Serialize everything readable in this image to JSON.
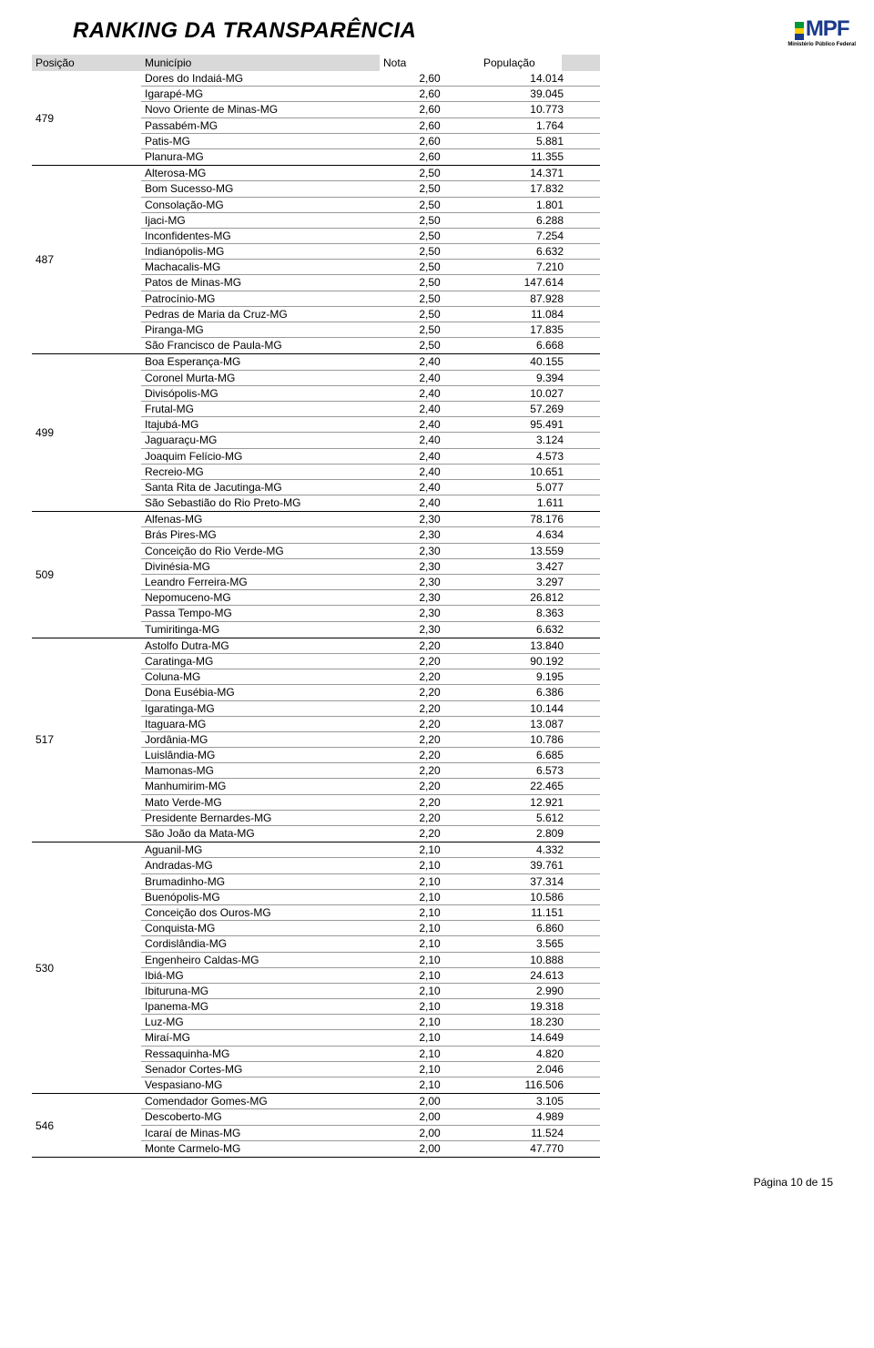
{
  "title": "RANKING DA TRANSPARÊNCIA",
  "logo": {
    "text": "MPF",
    "sub": "Ministério Público Federal"
  },
  "columns": {
    "posicao": "Posição",
    "municipio": "Município",
    "nota": "Nota",
    "populacao": "População"
  },
  "footer": "Página 10 de 15",
  "groups": [
    {
      "posicao": "479",
      "rows": [
        {
          "municipio": "Dores do Indaiá-MG",
          "nota": "2,60",
          "pop": "14.014"
        },
        {
          "municipio": "Igarapé-MG",
          "nota": "2,60",
          "pop": "39.045"
        },
        {
          "municipio": "Novo Oriente de Minas-MG",
          "nota": "2,60",
          "pop": "10.773"
        },
        {
          "municipio": "Passabém-MG",
          "nota": "2,60",
          "pop": "1.764"
        },
        {
          "municipio": "Patis-MG",
          "nota": "2,60",
          "pop": "5.881"
        },
        {
          "municipio": "Planura-MG",
          "nota": "2,60",
          "pop": "11.355"
        }
      ]
    },
    {
      "posicao": "487",
      "rows": [
        {
          "municipio": "Alterosa-MG",
          "nota": "2,50",
          "pop": "14.371"
        },
        {
          "municipio": "Bom Sucesso-MG",
          "nota": "2,50",
          "pop": "17.832"
        },
        {
          "municipio": "Consolação-MG",
          "nota": "2,50",
          "pop": "1.801"
        },
        {
          "municipio": "Ijaci-MG",
          "nota": "2,50",
          "pop": "6.288"
        },
        {
          "municipio": "Inconfidentes-MG",
          "nota": "2,50",
          "pop": "7.254"
        },
        {
          "municipio": "Indianópolis-MG",
          "nota": "2,50",
          "pop": "6.632"
        },
        {
          "municipio": "Machacalis-MG",
          "nota": "2,50",
          "pop": "7.210"
        },
        {
          "municipio": "Patos de Minas-MG",
          "nota": "2,50",
          "pop": "147.614"
        },
        {
          "municipio": "Patrocínio-MG",
          "nota": "2,50",
          "pop": "87.928"
        },
        {
          "municipio": "Pedras de Maria da Cruz-MG",
          "nota": "2,50",
          "pop": "11.084"
        },
        {
          "municipio": "Piranga-MG",
          "nota": "2,50",
          "pop": "17.835"
        },
        {
          "municipio": "São Francisco de Paula-MG",
          "nota": "2,50",
          "pop": "6.668"
        }
      ]
    },
    {
      "posicao": "499",
      "rows": [
        {
          "municipio": "Boa Esperança-MG",
          "nota": "2,40",
          "pop": "40.155"
        },
        {
          "municipio": "Coronel Murta-MG",
          "nota": "2,40",
          "pop": "9.394"
        },
        {
          "municipio": "Divisópolis-MG",
          "nota": "2,40",
          "pop": "10.027"
        },
        {
          "municipio": "Frutal-MG",
          "nota": "2,40",
          "pop": "57.269"
        },
        {
          "municipio": "Itajubá-MG",
          "nota": "2,40",
          "pop": "95.491"
        },
        {
          "municipio": "Jaguaraçu-MG",
          "nota": "2,40",
          "pop": "3.124"
        },
        {
          "municipio": "Joaquim Felício-MG",
          "nota": "2,40",
          "pop": "4.573"
        },
        {
          "municipio": "Recreio-MG",
          "nota": "2,40",
          "pop": "10.651"
        },
        {
          "municipio": "Santa Rita de Jacutinga-MG",
          "nota": "2,40",
          "pop": "5.077"
        },
        {
          "municipio": "São Sebastião do Rio Preto-MG",
          "nota": "2,40",
          "pop": "1.611"
        }
      ]
    },
    {
      "posicao": "509",
      "rows": [
        {
          "municipio": "Alfenas-MG",
          "nota": "2,30",
          "pop": "78.176"
        },
        {
          "municipio": "Brás Pires-MG",
          "nota": "2,30",
          "pop": "4.634"
        },
        {
          "municipio": "Conceição do Rio Verde-MG",
          "nota": "2,30",
          "pop": "13.559"
        },
        {
          "municipio": "Divinésia-MG",
          "nota": "2,30",
          "pop": "3.427"
        },
        {
          "municipio": "Leandro Ferreira-MG",
          "nota": "2,30",
          "pop": "3.297"
        },
        {
          "municipio": "Nepomuceno-MG",
          "nota": "2,30",
          "pop": "26.812"
        },
        {
          "municipio": "Passa Tempo-MG",
          "nota": "2,30",
          "pop": "8.363"
        },
        {
          "municipio": "Tumiritinga-MG",
          "nota": "2,30",
          "pop": "6.632"
        }
      ]
    },
    {
      "posicao": "517",
      "rows": [
        {
          "municipio": "Astolfo Dutra-MG",
          "nota": "2,20",
          "pop": "13.840"
        },
        {
          "municipio": "Caratinga-MG",
          "nota": "2,20",
          "pop": "90.192"
        },
        {
          "municipio": "Coluna-MG",
          "nota": "2,20",
          "pop": "9.195"
        },
        {
          "municipio": "Dona Eusébia-MG",
          "nota": "2,20",
          "pop": "6.386"
        },
        {
          "municipio": "Igaratinga-MG",
          "nota": "2,20",
          "pop": "10.144"
        },
        {
          "municipio": "Itaguara-MG",
          "nota": "2,20",
          "pop": "13.087"
        },
        {
          "municipio": "Jordânia-MG",
          "nota": "2,20",
          "pop": "10.786"
        },
        {
          "municipio": "Luislândia-MG",
          "nota": "2,20",
          "pop": "6.685"
        },
        {
          "municipio": "Mamonas-MG",
          "nota": "2,20",
          "pop": "6.573"
        },
        {
          "municipio": "Manhumirim-MG",
          "nota": "2,20",
          "pop": "22.465"
        },
        {
          "municipio": "Mato Verde-MG",
          "nota": "2,20",
          "pop": "12.921"
        },
        {
          "municipio": "Presidente Bernardes-MG",
          "nota": "2,20",
          "pop": "5.612"
        },
        {
          "municipio": "São João da Mata-MG",
          "nota": "2,20",
          "pop": "2.809"
        }
      ]
    },
    {
      "posicao": "530",
      "rows": [
        {
          "municipio": "Aguanil-MG",
          "nota": "2,10",
          "pop": "4.332"
        },
        {
          "municipio": "Andradas-MG",
          "nota": "2,10",
          "pop": "39.761"
        },
        {
          "municipio": "Brumadinho-MG",
          "nota": "2,10",
          "pop": "37.314"
        },
        {
          "municipio": "Buenópolis-MG",
          "nota": "2,10",
          "pop": "10.586"
        },
        {
          "municipio": "Conceição dos Ouros-MG",
          "nota": "2,10",
          "pop": "11.151"
        },
        {
          "municipio": "Conquista-MG",
          "nota": "2,10",
          "pop": "6.860"
        },
        {
          "municipio": "Cordislândia-MG",
          "nota": "2,10",
          "pop": "3.565"
        },
        {
          "municipio": "Engenheiro Caldas-MG",
          "nota": "2,10",
          "pop": "10.888"
        },
        {
          "municipio": "Ibiá-MG",
          "nota": "2,10",
          "pop": "24.613"
        },
        {
          "municipio": "Ibituruna-MG",
          "nota": "2,10",
          "pop": "2.990"
        },
        {
          "municipio": "Ipanema-MG",
          "nota": "2,10",
          "pop": "19.318"
        },
        {
          "municipio": "Luz-MG",
          "nota": "2,10",
          "pop": "18.230"
        },
        {
          "municipio": "Miraí-MG",
          "nota": "2,10",
          "pop": "14.649"
        },
        {
          "municipio": "Ressaquinha-MG",
          "nota": "2,10",
          "pop": "4.820"
        },
        {
          "municipio": "Senador Cortes-MG",
          "nota": "2,10",
          "pop": "2.046"
        },
        {
          "municipio": "Vespasiano-MG",
          "nota": "2,10",
          "pop": "116.506"
        }
      ]
    },
    {
      "posicao": "546",
      "rows": [
        {
          "municipio": "Comendador Gomes-MG",
          "nota": "2,00",
          "pop": "3.105"
        },
        {
          "municipio": "Descoberto-MG",
          "nota": "2,00",
          "pop": "4.989"
        },
        {
          "municipio": "Icaraí de Minas-MG",
          "nota": "2,00",
          "pop": "11.524"
        },
        {
          "municipio": "Monte Carmelo-MG",
          "nota": "2,00",
          "pop": "47.770"
        }
      ]
    }
  ]
}
